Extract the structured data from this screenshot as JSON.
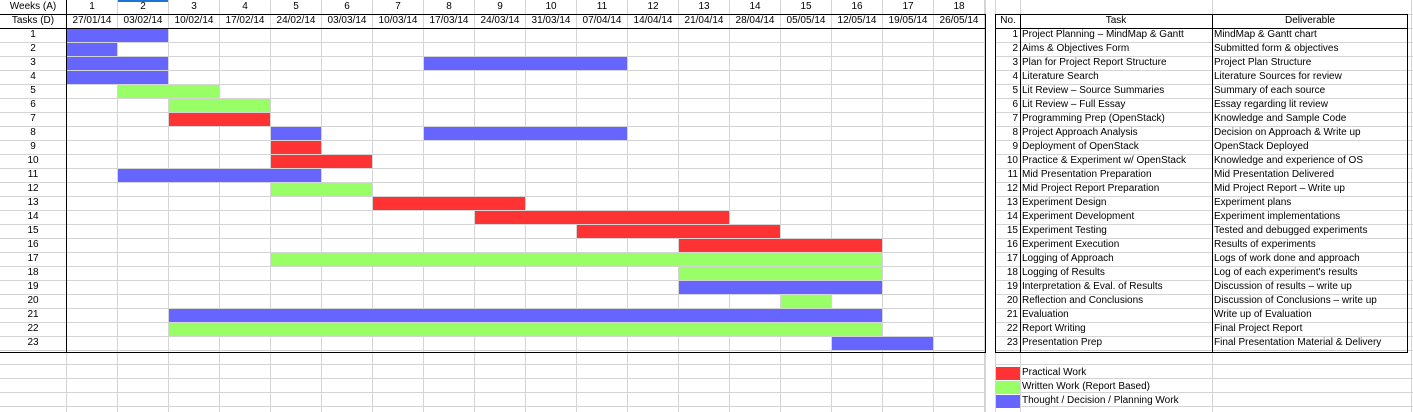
{
  "header": {
    "weeks_label": "Weeks (A)",
    "tasks_label": "Tasks (D)",
    "weeks": [
      "1",
      "2",
      "3",
      "4",
      "5",
      "6",
      "7",
      "8",
      "9",
      "10",
      "11",
      "12",
      "13",
      "14",
      "15",
      "16",
      "17",
      "18"
    ],
    "dates": [
      "27/01/14",
      "03/02/14",
      "10/02/14",
      "17/02/14",
      "24/02/14",
      "03/03/14",
      "10/03/14",
      "17/03/14",
      "24/03/14",
      "31/03/14",
      "07/04/14",
      "14/04/14",
      "21/04/14",
      "28/04/14",
      "05/05/14",
      "12/05/14",
      "19/05/14",
      "26/05/14"
    ]
  },
  "colors": {
    "practical": "#ff3333",
    "written": "#99ff66",
    "thought": "#6666ff"
  },
  "bars": [
    {
      "task": 1,
      "type": "thought",
      "start": 1,
      "end": 2
    },
    {
      "task": 2,
      "type": "thought",
      "start": 1,
      "end": 1
    },
    {
      "task": 3,
      "type": "thought",
      "start": 1,
      "end": 2
    },
    {
      "task": 3,
      "type": "thought",
      "start": 8,
      "end": 11
    },
    {
      "task": 4,
      "type": "thought",
      "start": 1,
      "end": 2
    },
    {
      "task": 5,
      "type": "written",
      "start": 2,
      "end": 3
    },
    {
      "task": 6,
      "type": "written",
      "start": 3,
      "end": 4
    },
    {
      "task": 7,
      "type": "practical",
      "start": 3,
      "end": 4
    },
    {
      "task": 8,
      "type": "thought",
      "start": 5,
      "end": 5
    },
    {
      "task": 8,
      "type": "thought",
      "start": 8,
      "end": 11
    },
    {
      "task": 9,
      "type": "practical",
      "start": 5,
      "end": 5
    },
    {
      "task": 10,
      "type": "practical",
      "start": 5,
      "end": 6
    },
    {
      "task": 11,
      "type": "thought",
      "start": 2,
      "end": 5
    },
    {
      "task": 12,
      "type": "written",
      "start": 5,
      "end": 6
    },
    {
      "task": 13,
      "type": "practical",
      "start": 7,
      "end": 9
    },
    {
      "task": 14,
      "type": "practical",
      "start": 9,
      "end": 13
    },
    {
      "task": 15,
      "type": "practical",
      "start": 11,
      "end": 14
    },
    {
      "task": 16,
      "type": "practical",
      "start": 13,
      "end": 16
    },
    {
      "task": 17,
      "type": "written",
      "start": 5,
      "end": 16
    },
    {
      "task": 18,
      "type": "written",
      "start": 13,
      "end": 16
    },
    {
      "task": 19,
      "type": "thought",
      "start": 13,
      "end": 16
    },
    {
      "task": 20,
      "type": "written",
      "start": 15,
      "end": 15
    },
    {
      "task": 21,
      "type": "thought",
      "start": 3,
      "end": 16
    },
    {
      "task": 22,
      "type": "written",
      "start": 3,
      "end": 16
    },
    {
      "task": 23,
      "type": "thought",
      "start": 16,
      "end": 17
    }
  ],
  "task_table": {
    "headers": [
      "No.",
      "Task",
      "Deliverable"
    ],
    "rows": [
      {
        "no": "1",
        "task": "Project Planning – MindMap & Gantt",
        "deliverable": "MindMap & Gantt chart"
      },
      {
        "no": "2",
        "task": "Aims & Objectives Form",
        "deliverable": "Submitted form & objectives"
      },
      {
        "no": "3",
        "task": "Plan for Project Report Structure",
        "deliverable": "Project Plan Structure"
      },
      {
        "no": "4",
        "task": "Literature Search",
        "deliverable": "Literature Sources for review"
      },
      {
        "no": "5",
        "task": "Lit Review – Source Summaries",
        "deliverable": "Summary of each source"
      },
      {
        "no": "6",
        "task": "Lit Review – Full Essay",
        "deliverable": "Essay regarding lit review"
      },
      {
        "no": "7",
        "task": "Programming Prep (OpenStack)",
        "deliverable": "Knowledge and Sample Code"
      },
      {
        "no": "8",
        "task": "Project Approach Analysis",
        "deliverable": "Decision on Approach & Write up"
      },
      {
        "no": "9",
        "task": "Deployment of OpenStack",
        "deliverable": "OpenStack Deployed"
      },
      {
        "no": "10",
        "task": "Practice & Experiment w/ OpenStack",
        "deliverable": "Knowledge and experience of OS"
      },
      {
        "no": "11",
        "task": "Mid Presentation Preparation",
        "deliverable": "Mid Presentation Delivered"
      },
      {
        "no": "12",
        "task": "Mid Project Report Preparation",
        "deliverable": "Mid Project Report – Write up"
      },
      {
        "no": "13",
        "task": "Experiment Design",
        "deliverable": "Experiment plans"
      },
      {
        "no": "14",
        "task": "Experiment Development",
        "deliverable": "Experiment implementations"
      },
      {
        "no": "15",
        "task": "Experiment Testing",
        "deliverable": "Tested and debugged experiments"
      },
      {
        "no": "16",
        "task": "Experiment Execution",
        "deliverable": "Results of experiments"
      },
      {
        "no": "17",
        "task": "Logging of Approach",
        "deliverable": "Logs of work done and approach"
      },
      {
        "no": "18",
        "task": "Logging of Results",
        "deliverable": "Log of each experiment's results"
      },
      {
        "no": "19",
        "task": "Interpretation & Eval. of Results",
        "deliverable": "Discussion of results – write up"
      },
      {
        "no": "20",
        "task": "Reflection and Conclusions",
        "deliverable": "Discussion of Conclusions – write up"
      },
      {
        "no": "21",
        "task": "Evaluation",
        "deliverable": "Write up of Evaluation"
      },
      {
        "no": "22",
        "task": "Report Writing",
        "deliverable": "Final Project Report"
      },
      {
        "no": "23",
        "task": "Presentation Prep",
        "deliverable": "Final Presentation Material & Delivery"
      }
    ]
  },
  "legend": [
    {
      "type": "practical",
      "label": "Practical Work"
    },
    {
      "type": "written",
      "label": "Written Work (Report Based)"
    },
    {
      "type": "thought",
      "label": "Thought / Decision / Planning Work"
    }
  ]
}
